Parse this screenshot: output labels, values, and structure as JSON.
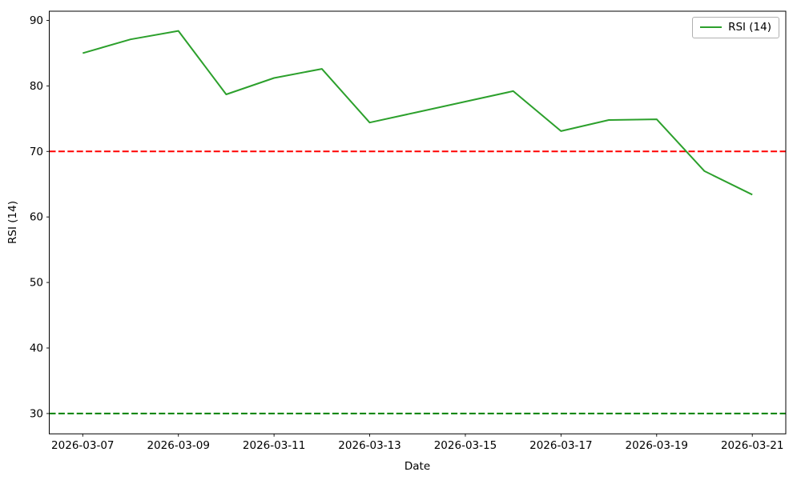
{
  "chart_data": {
    "type": "line",
    "title": "",
    "xlabel": "Date",
    "ylabel": "RSI (14)",
    "x": [
      "2026-03-07",
      "2026-03-08",
      "2026-03-09",
      "2026-03-10",
      "2026-03-11",
      "2026-03-12",
      "2026-03-13",
      "2026-03-14",
      "2026-03-15",
      "2026-03-16",
      "2026-03-17",
      "2026-03-18",
      "2026-03-19",
      "2026-03-20",
      "2026-03-21"
    ],
    "series": [
      {
        "name": "RSI (14)",
        "color": "#2ca02c",
        "style": "solid",
        "values": [
          85.0,
          87.1,
          88.4,
          78.7,
          81.2,
          82.6,
          74.4,
          76.0,
          77.6,
          79.2,
          73.1,
          74.8,
          74.9,
          67.0,
          63.4
        ]
      }
    ],
    "reference_lines": [
      {
        "name": "overbought-level",
        "y": 70,
        "color": "#ff0000",
        "style": "dashed"
      },
      {
        "name": "oversold-level",
        "y": 30,
        "color": "#008000",
        "style": "dashed"
      }
    ],
    "xticks": [
      "2026-03-07",
      "2026-03-09",
      "2026-03-11",
      "2026-03-13",
      "2026-03-15",
      "2026-03-17",
      "2026-03-19",
      "2026-03-21"
    ],
    "yticks": [
      30,
      40,
      50,
      60,
      70,
      80,
      90
    ],
    "ylim": [
      26.9,
      91.4
    ],
    "x_index_padding": 0.7,
    "grid": false,
    "legend_position": "upper right",
    "axis_color": "#000000",
    "background": "#ffffff"
  }
}
